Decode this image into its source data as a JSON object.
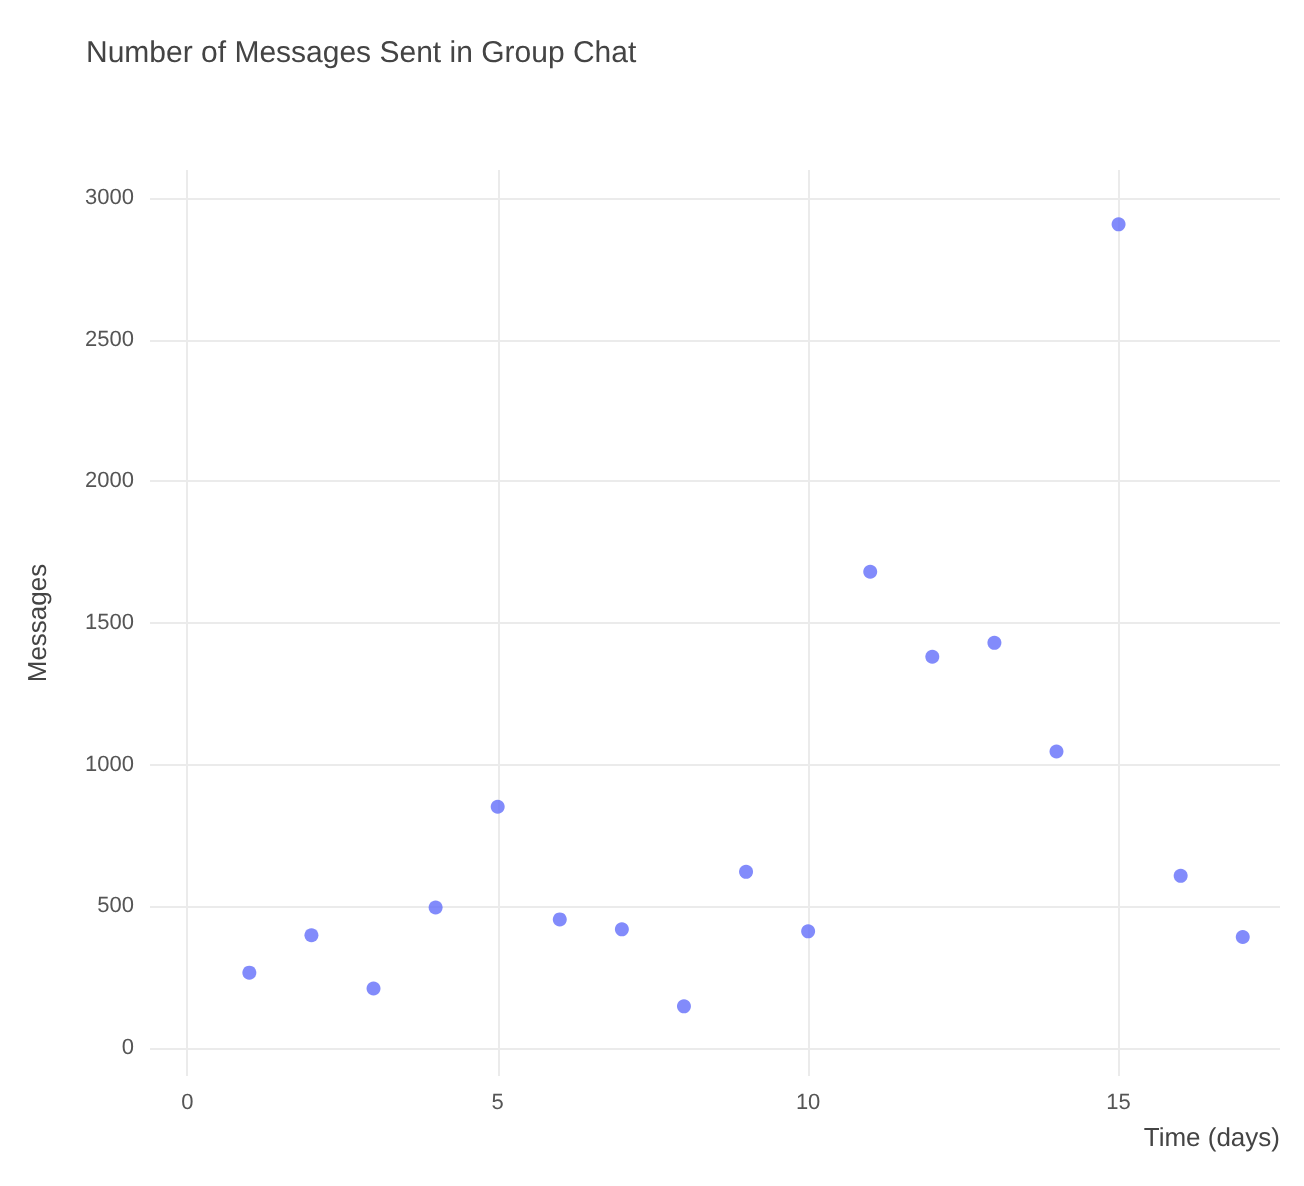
{
  "chart_data": {
    "type": "scatter",
    "title": "Number of Messages Sent in Group Chat",
    "xlabel": "Time (days)",
    "ylabel": "Messages",
    "x": [
      1,
      2,
      3,
      4,
      5,
      6,
      7,
      8,
      9,
      10,
      11,
      12,
      13,
      14,
      15,
      16,
      17
    ],
    "series": [
      {
        "color": "#636efa",
        "values": [
          265,
          397,
          209,
          495,
          851,
          453,
          418,
          146,
          621,
          411,
          1681,
          1381,
          1430,
          1046,
          2908,
          607,
          391
        ]
      }
    ],
    "xlim": [
      -0.6,
      17.6
    ],
    "xticks": [
      0,
      5,
      10,
      15
    ],
    "ylim": [
      -100,
      3100
    ],
    "yticks": [
      0,
      500,
      1000,
      1500,
      2000,
      2500,
      3000
    ],
    "grid": true,
    "marker": "circle"
  }
}
